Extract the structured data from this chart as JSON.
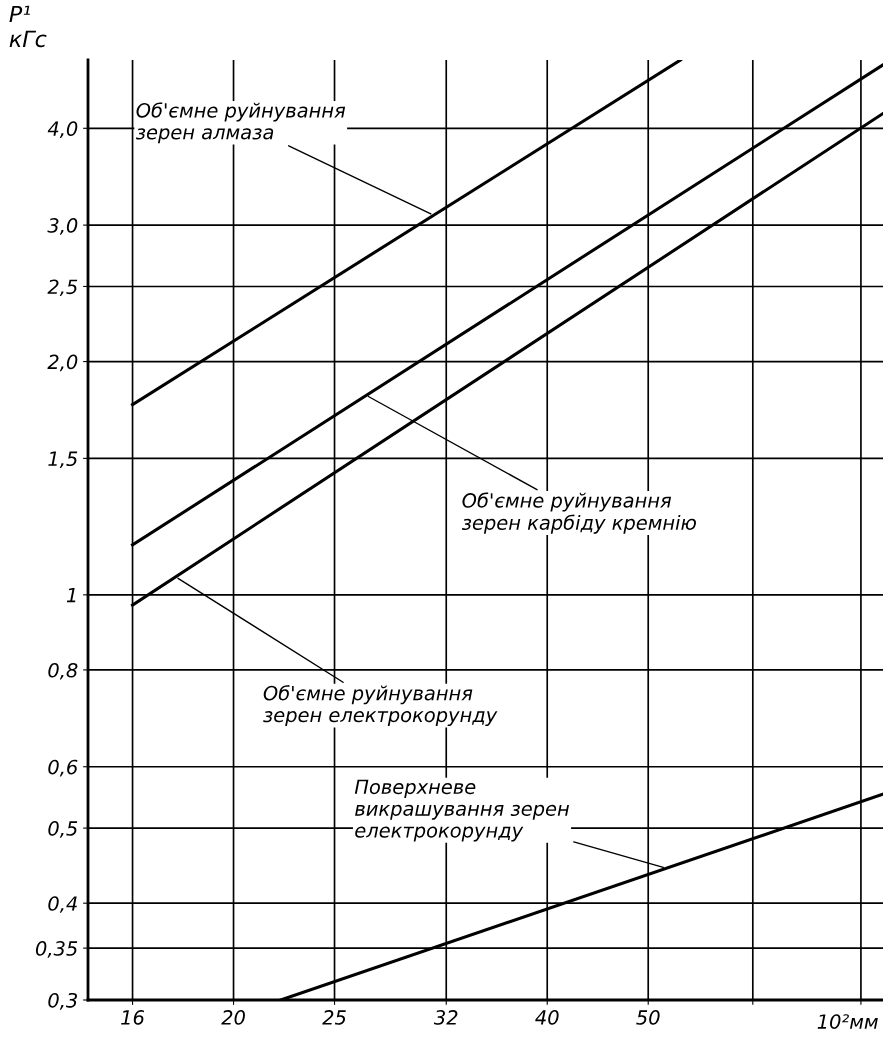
{
  "chart_data": {
    "type": "line",
    "ylabel": "P¹\nкГс",
    "xlabel": "10²мм",
    "log": "xy",
    "grid": true,
    "marker": "none",
    "line_style": "solid",
    "xlim": [
      14.5,
      84
    ],
    "ylim": [
      0.3,
      4.9
    ],
    "xticks": [
      16,
      20,
      25,
      32,
      40,
      50,
      {
        "value": 63,
        "label": null
      },
      {
        "value": 80,
        "label": null
      }
    ],
    "yticks": [
      {
        "value": 0.3,
        "label": "0,3"
      },
      {
        "value": 0.35,
        "label": "0,35"
      },
      {
        "value": 0.4,
        "label": "0,4"
      },
      {
        "value": 0.5,
        "label": "0,5"
      },
      {
        "value": 0.6,
        "label": "0,6"
      },
      {
        "value": 0.8,
        "label": "0,8"
      },
      1,
      {
        "value": 1.5,
        "label": "1,5"
      },
      {
        "value": 2.0,
        "label": "2,0"
      },
      {
        "value": 2.5,
        "label": "2,5"
      },
      {
        "value": 3.0,
        "label": "3,0"
      },
      {
        "value": 4.0,
        "label": "4,0"
      }
    ],
    "series": [
      {
        "color": "#000000",
        "x": [
          16,
          53.7
        ],
        "values": [
          1.76,
          4.9
        ]
      },
      {
        "color": "#000000",
        "x": [
          16,
          84
        ],
        "values": [
          1.16,
          4.83
        ]
      },
      {
        "color": "#000000",
        "x": [
          16,
          84
        ],
        "values": [
          0.97,
          4.18
        ]
      },
      {
        "color": "#000000",
        "x": [
          22.2,
          84
        ],
        "values": [
          0.3,
          0.553
        ]
      }
    ],
    "annotations": [
      {
        "text": "Об'ємне руйнування\nзерен алмаза",
        "x": 31.1,
        "y": 3.09
      },
      {
        "text": "Об'ємне руйнування\nзерен карбіду кремнію",
        "x": 26.8,
        "y": 1.81
      },
      {
        "text": "Об'ємне руйнування\nзерен електрокорунду",
        "x": 17.6,
        "y": 1.055
      },
      {
        "text": "Поверхневе\nвикрашування зерен\nелектрокорунду",
        "x": 52,
        "y": 0.444
      }
    ]
  }
}
